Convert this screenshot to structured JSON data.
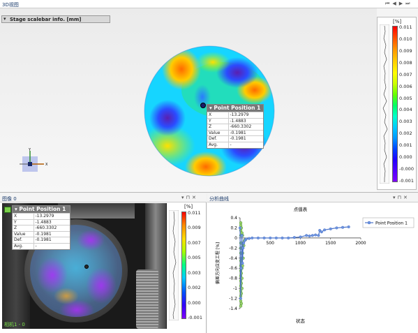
{
  "top_view": {
    "tab_label": "3D视图",
    "controls": [
      "⏮",
      "◀",
      "▶",
      "⏭"
    ],
    "stage_header": "Stage scalebar info. [mm]"
  },
  "top_colorbar": {
    "unit": "[%]",
    "ticks": [
      "0.011",
      "0.010",
      "0.009",
      "0.008",
      "0.007",
      "0.006",
      "0.005",
      "0.004",
      "0.003",
      "0.002",
      "0.001",
      "0.000",
      "-0.000",
      "-0.001"
    ]
  },
  "point_box": {
    "title": "Point Position 1",
    "rows": [
      {
        "k": "X",
        "v": "-13.2979"
      },
      {
        "k": "Y",
        "v": "-1.4883"
      },
      {
        "k": "Z",
        "v": "-660.3302"
      },
      {
        "k": "Value",
        "v": "-0.1981"
      },
      {
        "k": "Def.",
        "v": "-0.1981"
      },
      {
        "k": "Avg.",
        "v": "-"
      }
    ]
  },
  "image_panel": {
    "title": "图像 0",
    "controls": [
      "▾",
      "⊓",
      "✕"
    ],
    "status": "相机1 - 0"
  },
  "bottom_colorbar": {
    "unit": "[%]",
    "ticks": [
      "0.011",
      "0.009",
      "0.007",
      "0.005",
      "0.003",
      "0.002",
      "0.000",
      "-0.001"
    ]
  },
  "chart_panel": {
    "title": "分析曲线",
    "controls": [
      "▾",
      "⊓",
      "✕"
    ]
  },
  "axis_marker": {
    "x": "X",
    "y": "Y"
  },
  "chart_data": {
    "type": "line",
    "title": "点值表",
    "xlabel": "状态",
    "ylabel": "偏差方向应变工程 [%]",
    "xlim": [
      0,
      2000
    ],
    "ylim": [
      -1.4,
      0.4
    ],
    "x_ticks": [
      "500",
      "1000",
      "1500",
      "2000"
    ],
    "y_ticks": [
      "0.4",
      "0.2",
      "0",
      "-0.2",
      "-0.4",
      "-0.6",
      "-0.8",
      "-1",
      "-1.2",
      "-1.4"
    ],
    "series": [
      {
        "name": "Point Position 1",
        "color": "#4a72c8",
        "x": [
          0,
          10,
          20,
          30,
          40,
          50,
          60,
          80,
          100,
          150,
          200,
          300,
          400,
          500,
          600,
          700,
          800,
          900,
          1000,
          1100,
          1150,
          1200,
          1250,
          1300,
          1320,
          1350,
          1400,
          1500,
          1600,
          1700,
          1800
        ],
        "y": [
          0.2,
          -1.2,
          -0.6,
          0.05,
          -0.5,
          -0.2,
          -0.1,
          -0.05,
          -0.02,
          -0.01,
          0.0,
          0.0,
          0.0,
          0.0,
          0.0,
          0.0,
          0.0,
          0.01,
          0.02,
          0.05,
          0.04,
          0.05,
          0.06,
          0.05,
          0.15,
          0.12,
          0.16,
          0.18,
          0.2,
          0.21,
          0.22
        ]
      }
    ],
    "scatter_points": [
      [
        0,
        0.3
      ],
      [
        0,
        0.25
      ],
      [
        0,
        0.15
      ],
      [
        0,
        0.05
      ],
      [
        0,
        -0.1
      ],
      [
        0,
        -0.2
      ],
      [
        0,
        -0.3
      ],
      [
        0,
        -0.45
      ],
      [
        0,
        -0.55
      ],
      [
        0,
        -0.65
      ],
      [
        0,
        -0.75
      ],
      [
        0,
        -0.85
      ],
      [
        0,
        -0.95
      ],
      [
        0,
        -1.05
      ],
      [
        0,
        -1.15
      ],
      [
        0,
        -1.25
      ],
      [
        0,
        -1.35
      ],
      [
        10,
        0.2
      ],
      [
        10,
        -0.1
      ],
      [
        10,
        -0.3
      ],
      [
        10,
        -0.5
      ],
      [
        10,
        -0.7
      ],
      [
        10,
        -0.9
      ],
      [
        10,
        -1.1
      ],
      [
        10,
        -1.3
      ],
      [
        20,
        0.1
      ],
      [
        20,
        -0.2
      ],
      [
        20,
        -0.4
      ],
      [
        20,
        -0.6
      ],
      [
        20,
        -0.8
      ],
      [
        20,
        -1.0
      ],
      [
        30,
        0.05
      ],
      [
        30,
        -0.3
      ],
      [
        30,
        -0.55
      ],
      [
        40,
        -0.1
      ],
      [
        40,
        -0.4
      ],
      [
        50,
        -0.15
      ],
      [
        60,
        -0.05
      ],
      [
        80,
        -0.03
      ]
    ],
    "legend": "top-right"
  }
}
